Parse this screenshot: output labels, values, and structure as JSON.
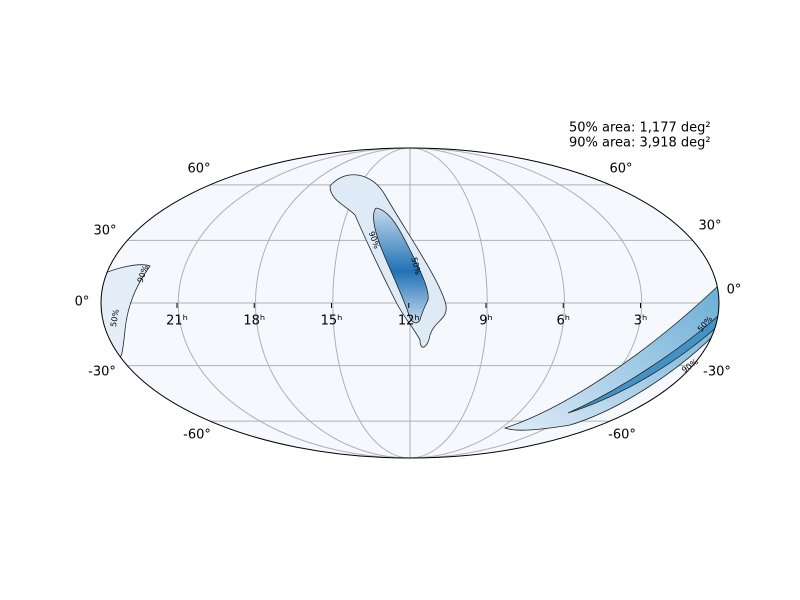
{
  "annotation": [
    "50% area: 1,177 deg²",
    "90% area: 3,918 deg²"
  ],
  "lon_labels": [
    "21ʰ",
    "18ʰ",
    "15ʰ",
    "12ʰ",
    "9ʰ",
    "6ʰ",
    "3ʰ"
  ],
  "lat_labels_left": [
    "60°",
    "30°",
    "0°",
    "-30°",
    "-60°"
  ],
  "lat_labels_right": [
    "60°",
    "30°",
    "0°",
    "-30°",
    "-60°"
  ],
  "contour_labels": [
    "90%",
    "50%",
    "90%",
    "50%",
    "50%",
    "90%"
  ]
}
